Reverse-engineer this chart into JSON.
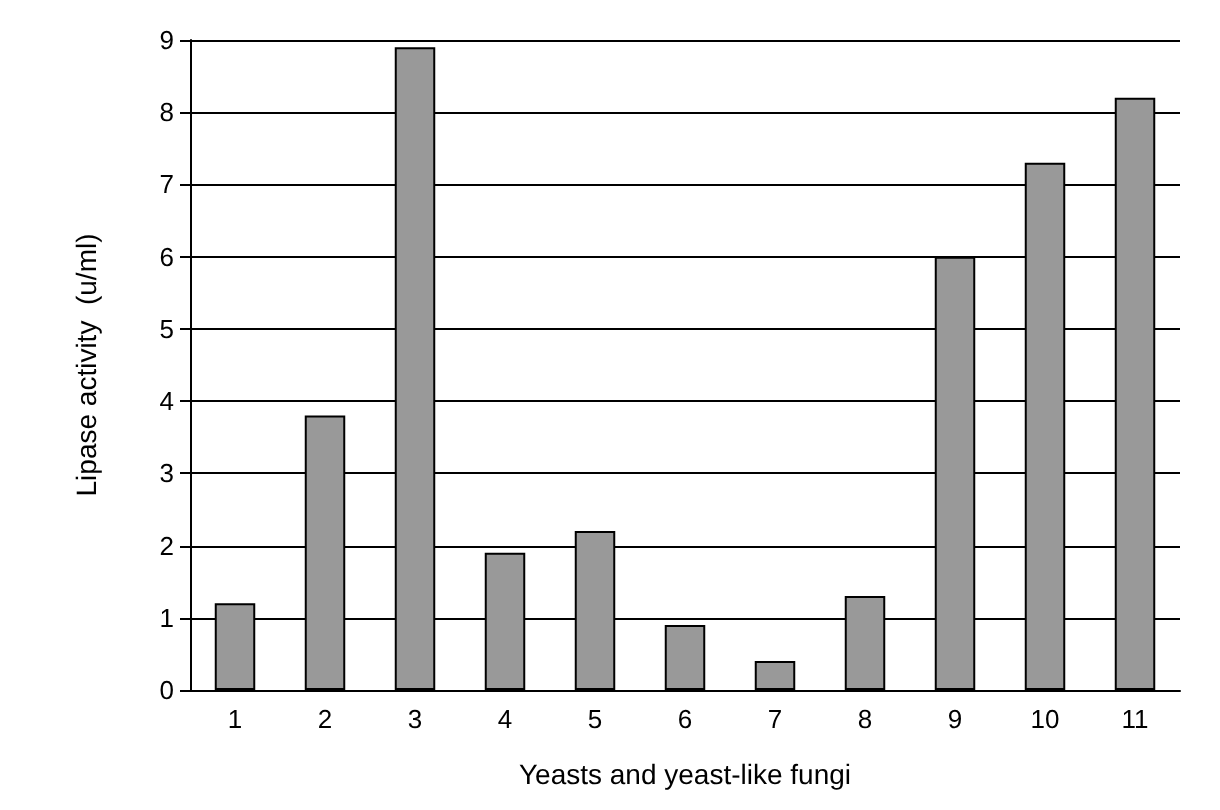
{
  "chart_data": {
    "type": "bar",
    "xlabel": "Yeasts and yeast-like fungi",
    "ylabel": "Lipase activity  (u/ml)",
    "categories": [
      "1",
      "2",
      "3",
      "4",
      "5",
      "6",
      "7",
      "8",
      "9",
      "10",
      "11"
    ],
    "values": [
      1.2,
      3.8,
      8.9,
      1.9,
      2.2,
      0.9,
      0.4,
      1.3,
      6.0,
      7.3,
      8.2
    ],
    "color": "#999999",
    "ylim": [
      0,
      9
    ],
    "yticks": [
      0,
      1,
      2,
      3,
      4,
      5,
      6,
      7,
      8,
      9
    ],
    "grid": "y"
  }
}
